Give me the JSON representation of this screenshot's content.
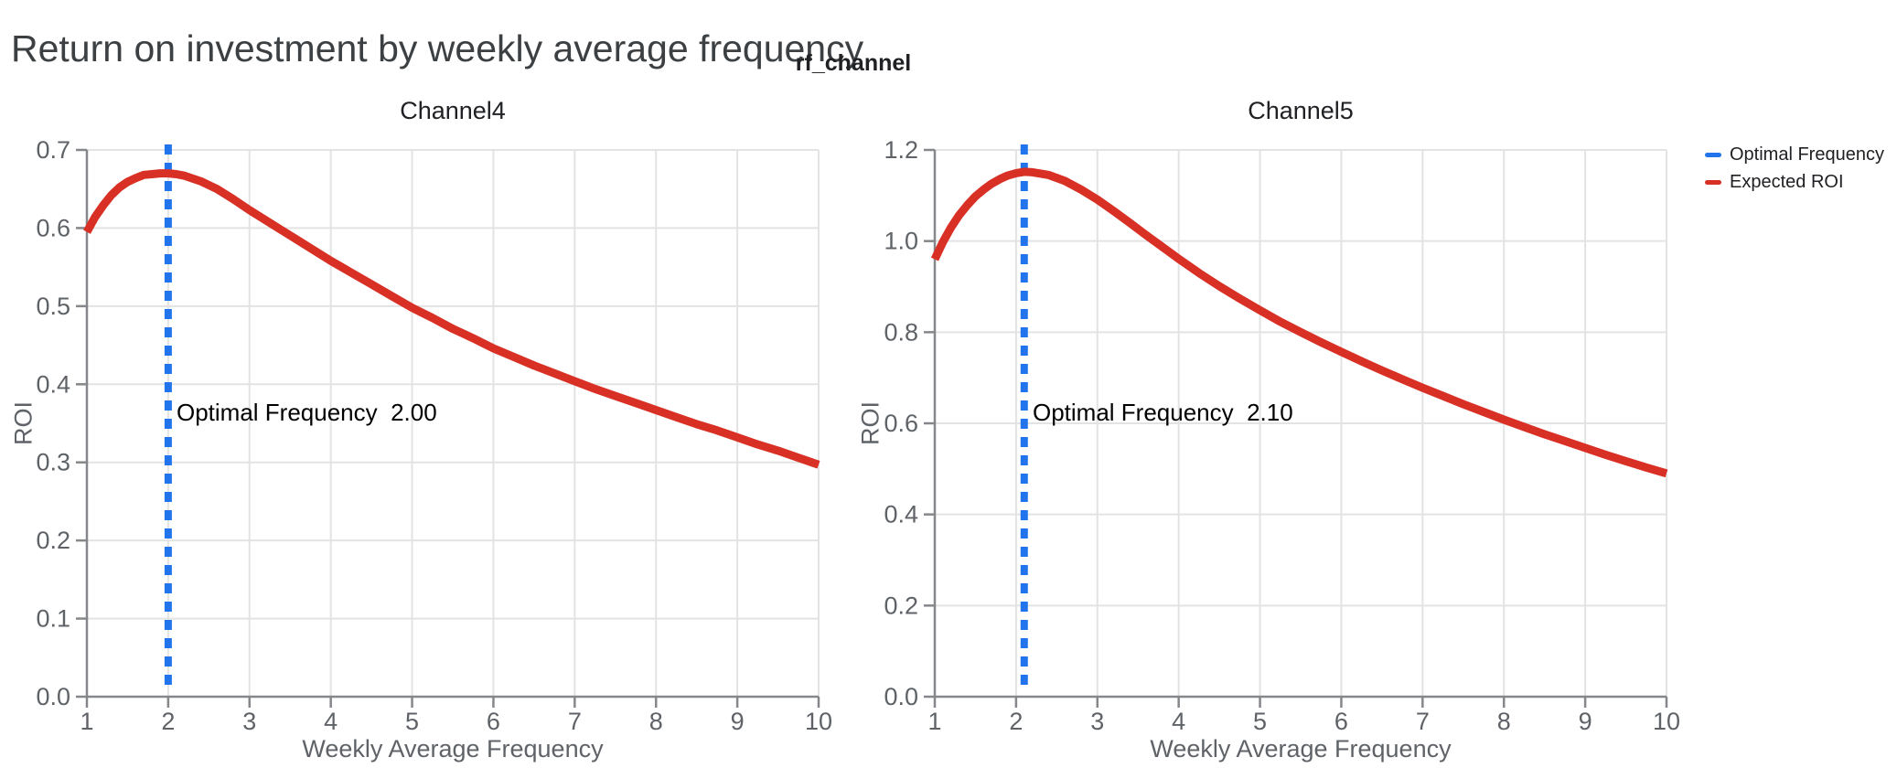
{
  "page": {
    "title": "Return on investment by weekly average frequency",
    "subtitle": "rf_channel"
  },
  "colors": {
    "series_red": "#d93025",
    "series_blue": "#2174eb",
    "gridline": "#e3e3e3",
    "axis": "#85878b",
    "tick_text": "#5f6368",
    "title_text": "#3c4043"
  },
  "legend": {
    "position": "top-right",
    "items": [
      {
        "label": "Optimal Frequency",
        "color": "#2174eb"
      },
      {
        "label": "Expected ROI",
        "color": "#d93025"
      }
    ]
  },
  "chart_data": [
    {
      "type": "line",
      "title": "Channel4",
      "xlabel": "Weekly Average Frequency",
      "ylabel": "ROI",
      "xlim": [
        1,
        10
      ],
      "ylim": [
        0,
        0.7
      ],
      "xticks": [
        1,
        2,
        3,
        4,
        5,
        6,
        7,
        8,
        9,
        10
      ],
      "yticks": [
        "0.0",
        "0.1",
        "0.2",
        "0.3",
        "0.4",
        "0.5",
        "0.6",
        "0.7"
      ],
      "grid": true,
      "optimal_frequency": 2.0,
      "annotation": "Optimal Frequency  2.00",
      "vline": {
        "name": "Optimal Frequency",
        "x": 2.0,
        "color": "#2174eb",
        "style": "dashed"
      },
      "series": [
        {
          "name": "Expected ROI",
          "color": "#d93025",
          "points": [
            [
              1,
              0.595
            ],
            [
              1.1,
              0.614
            ],
            [
              1.2,
              0.629
            ],
            [
              1.3,
              0.642
            ],
            [
              1.4,
              0.652
            ],
            [
              1.5,
              0.659
            ],
            [
              1.6,
              0.664
            ],
            [
              1.7,
              0.668
            ],
            [
              1.8,
              0.669
            ],
            [
              1.9,
              0.67
            ],
            [
              2,
              0.67
            ],
            [
              2.1,
              0.669
            ],
            [
              2.2,
              0.667
            ],
            [
              2.4,
              0.66
            ],
            [
              2.6,
              0.65
            ],
            [
              2.8,
              0.637
            ],
            [
              3,
              0.623
            ],
            [
              3.2,
              0.61
            ],
            [
              3.4,
              0.597
            ],
            [
              3.6,
              0.584
            ],
            [
              3.8,
              0.571
            ],
            [
              4,
              0.558
            ],
            [
              4.25,
              0.543
            ],
            [
              4.5,
              0.528
            ],
            [
              4.75,
              0.513
            ],
            [
              5,
              0.498
            ],
            [
              5.25,
              0.485
            ],
            [
              5.5,
              0.471
            ],
            [
              5.75,
              0.459
            ],
            [
              6,
              0.446
            ],
            [
              6.25,
              0.435
            ],
            [
              6.5,
              0.424
            ],
            [
              6.75,
              0.414
            ],
            [
              7,
              0.404
            ],
            [
              7.25,
              0.394
            ],
            [
              7.5,
              0.385
            ],
            [
              7.75,
              0.376
            ],
            [
              8,
              0.367
            ],
            [
              8.25,
              0.358
            ],
            [
              8.5,
              0.349
            ],
            [
              8.75,
              0.341
            ],
            [
              9,
              0.332
            ],
            [
              9.25,
              0.323
            ],
            [
              9.5,
              0.315
            ],
            [
              9.75,
              0.306
            ],
            [
              10,
              0.297
            ]
          ]
        }
      ]
    },
    {
      "type": "line",
      "title": "Channel5",
      "xlabel": "Weekly Average Frequency",
      "ylabel": "ROI",
      "xlim": [
        1,
        10
      ],
      "ylim": [
        0,
        1.2
      ],
      "xticks": [
        1,
        2,
        3,
        4,
        5,
        6,
        7,
        8,
        9,
        10
      ],
      "yticks": [
        "0.0",
        "0.2",
        "0.4",
        "0.6",
        "0.8",
        "1.0",
        "1.2"
      ],
      "grid": true,
      "optimal_frequency": 2.1,
      "annotation": "Optimal Frequency  2.10",
      "vline": {
        "name": "Optimal Frequency",
        "x": 2.1,
        "color": "#2174eb",
        "style": "dashed"
      },
      "series": [
        {
          "name": "Expected ROI",
          "color": "#d93025",
          "points": [
            [
              1,
              0.96
            ],
            [
              1.1,
              0.998
            ],
            [
              1.2,
              1.03
            ],
            [
              1.3,
              1.057
            ],
            [
              1.4,
              1.079
            ],
            [
              1.5,
              1.098
            ],
            [
              1.6,
              1.113
            ],
            [
              1.7,
              1.126
            ],
            [
              1.8,
              1.136
            ],
            [
              1.9,
              1.144
            ],
            [
              2,
              1.149
            ],
            [
              2.1,
              1.152
            ],
            [
              2.2,
              1.151
            ],
            [
              2.4,
              1.145
            ],
            [
              2.6,
              1.132
            ],
            [
              2.8,
              1.113
            ],
            [
              3,
              1.091
            ],
            [
              3.2,
              1.066
            ],
            [
              3.4,
              1.04
            ],
            [
              3.6,
              1.013
            ],
            [
              3.8,
              0.987
            ],
            [
              4,
              0.961
            ],
            [
              4.25,
              0.93
            ],
            [
              4.5,
              0.901
            ],
            [
              4.75,
              0.874
            ],
            [
              5,
              0.848
            ],
            [
              5.25,
              0.823
            ],
            [
              5.5,
              0.8
            ],
            [
              5.75,
              0.778
            ],
            [
              6,
              0.757
            ],
            [
              6.25,
              0.736
            ],
            [
              6.5,
              0.716
            ],
            [
              6.75,
              0.697
            ],
            [
              7,
              0.678
            ],
            [
              7.25,
              0.66
            ],
            [
              7.5,
              0.642
            ],
            [
              7.75,
              0.625
            ],
            [
              8,
              0.608
            ],
            [
              8.25,
              0.592
            ],
            [
              8.5,
              0.576
            ],
            [
              8.75,
              0.561
            ],
            [
              9,
              0.546
            ],
            [
              9.25,
              0.531
            ],
            [
              9.5,
              0.517
            ],
            [
              9.75,
              0.503
            ],
            [
              10,
              0.49
            ]
          ]
        }
      ]
    }
  ]
}
